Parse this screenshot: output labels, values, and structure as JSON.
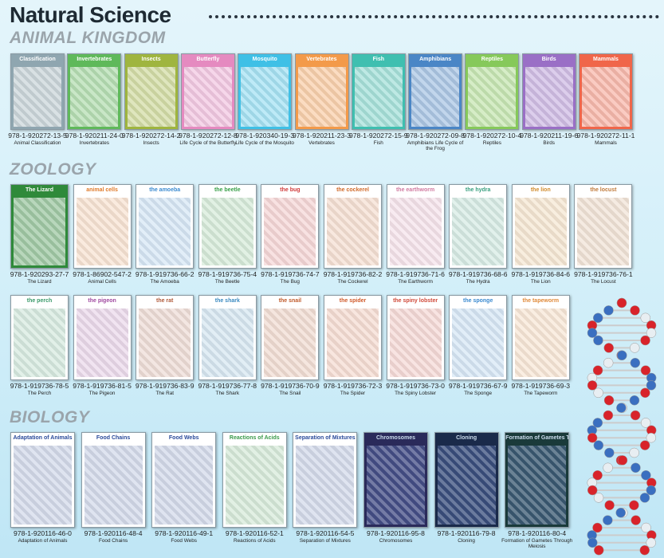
{
  "title": "Natural Science",
  "sections": {
    "animal_kingdom": {
      "label": "ANIMAL KINGDOM",
      "items": [
        {
          "poster": "Classification",
          "isbn": "978-1-920272-13-5",
          "name": "Animal Classification",
          "color": "#8fa6b0"
        },
        {
          "poster": "Invertebrates",
          "isbn": "978-1-920211-24-0",
          "name": "Invertebrates",
          "color": "#5fb95a"
        },
        {
          "poster": "Insects",
          "isbn": "978-1-920272-14-2",
          "name": "Insects",
          "color": "#9fb53f"
        },
        {
          "poster": "Butterfly",
          "isbn": "978-1-920272-12-8",
          "name": "Life Cycle of the Butterfly",
          "color": "#e58ac0"
        },
        {
          "poster": "Mosquito",
          "isbn": "978-1-920340-19-3",
          "name": "Life Cycle of the Mosquito",
          "color": "#3fc0e6"
        },
        {
          "poster": "Vertebrates",
          "isbn": "978-1-920211-23-3",
          "name": "Vertebrates",
          "color": "#f39a4a"
        },
        {
          "poster": "Fish",
          "isbn": "978-1-920272-15-9",
          "name": "Fish",
          "color": "#3fbfb0"
        },
        {
          "poster": "Amphibians",
          "isbn": "978-1-920272-09-8",
          "name": "Amphibians Life Cycle of the Frog",
          "color": "#4a86c6"
        },
        {
          "poster": "Reptiles",
          "isbn": "978-1-920272-10-4",
          "name": "Reptiles",
          "color": "#86c95a"
        },
        {
          "poster": "Birds",
          "isbn": "978-1-920211-19-6",
          "name": "Birds",
          "color": "#9a6fc6"
        },
        {
          "poster": "Mammals",
          "isbn": "978-1-920272-11-1",
          "name": "Mammals",
          "color": "#f0664a"
        }
      ]
    },
    "zoology": {
      "label": "ZOOLOGY",
      "items": [
        {
          "poster": "The Lizard",
          "isbn": "978-1-920293-27-7",
          "name": "The Lizard",
          "color": "#2f8a3a"
        },
        {
          "poster": "animal cells",
          "isbn": "978-1-86902-547-2",
          "name": "Animal Cells",
          "color": "#e07a2a"
        },
        {
          "poster": "the amoeba",
          "isbn": "978-1-919736-66-2",
          "name": "The Amoeba",
          "color": "#3a8ad0"
        },
        {
          "poster": "the beetle",
          "isbn": "978-1-919736-75-4",
          "name": "The Beetle",
          "color": "#3aa04a"
        },
        {
          "poster": "the bug",
          "isbn": "978-1-919736-74-7",
          "name": "The Bug",
          "color": "#d03a3a"
        },
        {
          "poster": "the cockerel",
          "isbn": "978-1-919736-82-2",
          "name": "The Cockerel",
          "color": "#d06a2a"
        },
        {
          "poster": "the earthworm",
          "isbn": "978-1-919736-71-6",
          "name": "The Earthworm",
          "color": "#d07aa0"
        },
        {
          "poster": "the hydra",
          "isbn": "978-1-919736-68-6",
          "name": "The Hydra",
          "color": "#3aa080"
        },
        {
          "poster": "the lion",
          "isbn": "978-1-919736-84-6",
          "name": "The Lion",
          "color": "#d08a2a"
        },
        {
          "poster": "the locust",
          "isbn": "978-1-919736-76-1",
          "name": "The Locust",
          "color": "#c07a3a"
        },
        {
          "poster": "the perch",
          "isbn": "978-1-919736-78-5",
          "name": "The Perch",
          "color": "#3a9a6a"
        },
        {
          "poster": "the pigeon",
          "isbn": "978-1-919736-81-5",
          "name": "The Pigeon",
          "color": "#a04aa0"
        },
        {
          "poster": "the rat",
          "isbn": "978-1-919736-83-9",
          "name": "The Rat",
          "color": "#b05a3a"
        },
        {
          "poster": "the shark",
          "isbn": "978-1-919736-77-8",
          "name": "The Shark",
          "color": "#3a8ac0"
        },
        {
          "poster": "the snail",
          "isbn": "978-1-919736-70-9",
          "name": "The Snail",
          "color": "#c05a2a"
        },
        {
          "poster": "the spider",
          "isbn": "978-1-919736-72-3",
          "name": "The Spider",
          "color": "#d05a2a"
        },
        {
          "poster": "the spiny lobster",
          "isbn": "978-1-919736-73-0",
          "name": "The Spiny Lobster",
          "color": "#d04a3a"
        },
        {
          "poster": "the sponge",
          "isbn": "978-1-919736-67-9",
          "name": "The Sponge",
          "color": "#3a8ad0"
        },
        {
          "poster": "the tapeworm",
          "isbn": "978-1-919736-69-3",
          "name": "The Tapeworm",
          "color": "#e08a3a"
        }
      ]
    },
    "biology": {
      "label": "BIOLOGY",
      "items": [
        {
          "poster": "Adaptation of Animals",
          "isbn": "978-1-920116-46-0",
          "name": "Adaptation of Animals",
          "color": "#2a4a9a"
        },
        {
          "poster": "Food Chains",
          "isbn": "978-1-920116-48-4",
          "name": "Food Chains",
          "color": "#2a4a9a"
        },
        {
          "poster": "Food Webs",
          "isbn": "978-1-920116-49-1",
          "name": "Food Webs",
          "color": "#2a4a9a"
        },
        {
          "poster": "Reactions of Acids",
          "isbn": "978-1-920116-52-1",
          "name": "Reactions of Acids",
          "color": "#3a9a4a"
        },
        {
          "poster": "Separation of Mixtures",
          "isbn": "978-1-920116-54-5",
          "name": "Separation of Mixtures",
          "color": "#2a4a9a"
        },
        {
          "poster": "Chromosomes",
          "isbn": "978-1-920116-95-8",
          "name": "Chromosomes",
          "color": "#2a2a5a"
        },
        {
          "poster": "Cloning",
          "isbn": "978-1-920116-79-8",
          "name": "Cloning",
          "color": "#1a2a4a"
        },
        {
          "poster": "Formation of Gametes Through Meiosis",
          "isbn": "978-1-920116-80-4",
          "name": "Formation of Gametes Through Meiosis",
          "color": "#1a3a3a"
        }
      ]
    }
  }
}
